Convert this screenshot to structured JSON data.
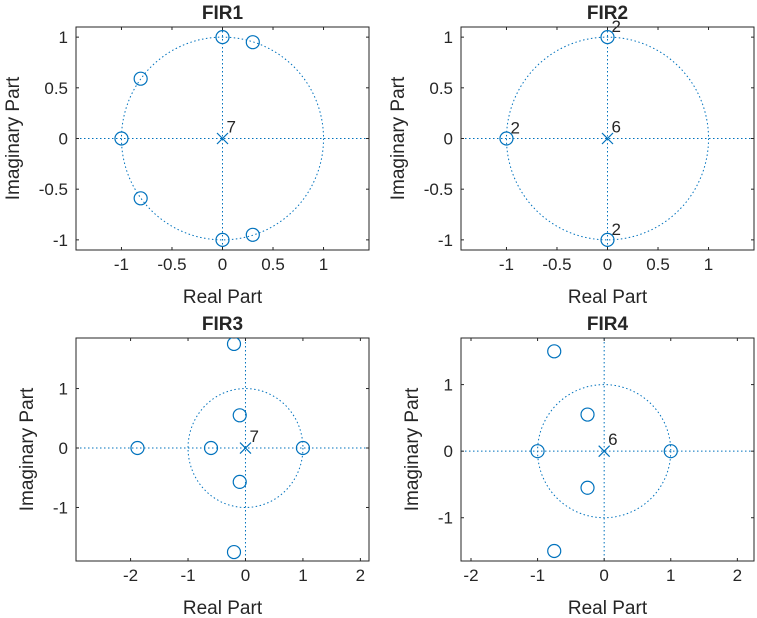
{
  "colors": {
    "marker": "#0072BD",
    "axes": "#262626",
    "background": "#ffffff"
  },
  "chart_data": [
    {
      "type": "scatter",
      "title": "FIR1",
      "xlabel": "Real Part",
      "ylabel": "Imaginary Part",
      "xlim": [
        -1.45,
        1.45
      ],
      "ylim": [
        -1.1,
        1.1
      ],
      "xticks": [
        -1,
        -0.5,
        0,
        0.5,
        1
      ],
      "xtick_labels": [
        "-1",
        "-0.5",
        "0",
        "0.5",
        "1"
      ],
      "yticks": [
        -1,
        -0.5,
        0,
        0.5,
        1
      ],
      "ytick_labels": [
        "-1",
        "-0.5",
        "0",
        "0.5",
        "1"
      ],
      "unit_circle": true,
      "zeros": [
        [
          0,
          1
        ],
        [
          0.3,
          0.95
        ],
        [
          -0.81,
          0.59
        ],
        [
          -1,
          0
        ],
        [
          -0.81,
          -0.59
        ],
        [
          0,
          -1
        ],
        [
          0.3,
          -0.95
        ]
      ],
      "zero_multiplicity_labels": [],
      "poles": [
        [
          0,
          0
        ]
      ],
      "pole_multiplicity_label": "7"
    },
    {
      "type": "scatter",
      "title": "FIR2",
      "xlabel": "Real Part",
      "ylabel": "Imaginary Part",
      "xlim": [
        -1.45,
        1.45
      ],
      "ylim": [
        -1.1,
        1.1
      ],
      "xticks": [
        -1,
        -0.5,
        0,
        0.5,
        1
      ],
      "xtick_labels": [
        "-1",
        "-0.5",
        "0",
        "0.5",
        "1"
      ],
      "yticks": [
        -1,
        -0.5,
        0,
        0.5,
        1
      ],
      "ytick_labels": [
        "-1",
        "-0.5",
        "0",
        "0.5",
        "1"
      ],
      "unit_circle": true,
      "zeros": [
        [
          0,
          1
        ],
        [
          -1,
          0
        ],
        [
          0,
          -1
        ]
      ],
      "zero_multiplicity_labels": [
        "2",
        "2",
        "2"
      ],
      "poles": [
        [
          0,
          0
        ]
      ],
      "pole_multiplicity_label": "6"
    },
    {
      "type": "scatter",
      "title": "FIR3",
      "xlabel": "Real Part",
      "ylabel": "Imaginary Part",
      "xlim": [
        -2.95,
        2.15
      ],
      "ylim": [
        -1.9,
        1.85
      ],
      "xticks": [
        -2,
        -1,
        0,
        1,
        2
      ],
      "xtick_labels": [
        "-2",
        "-1",
        "0",
        "1",
        "2"
      ],
      "yticks": [
        -1,
        0,
        1
      ],
      "ytick_labels": [
        "-1",
        "0",
        "1"
      ],
      "unit_circle": true,
      "zeros": [
        [
          -0.2,
          1.75
        ],
        [
          -0.1,
          0.55
        ],
        [
          -1.88,
          0
        ],
        [
          -0.6,
          0
        ],
        [
          1.0,
          0
        ],
        [
          -0.1,
          -0.57
        ],
        [
          -0.2,
          -1.75
        ]
      ],
      "zero_multiplicity_labels": [],
      "poles": [
        [
          0,
          0
        ]
      ],
      "pole_multiplicity_label": "7"
    },
    {
      "type": "scatter",
      "title": "FIR4",
      "xlabel": "Real Part",
      "ylabel": "Imaginary Part",
      "xlim": [
        -2.15,
        2.25
      ],
      "ylim": [
        -1.65,
        1.7
      ],
      "xticks": [
        -2,
        -1,
        0,
        1,
        2
      ],
      "xtick_labels": [
        "-2",
        "-1",
        "0",
        "1",
        "2"
      ],
      "yticks": [
        -1,
        0,
        1
      ],
      "ytick_labels": [
        "-1",
        "0",
        "1"
      ],
      "unit_circle": true,
      "zeros": [
        [
          -0.75,
          1.5
        ],
        [
          -0.25,
          0.55
        ],
        [
          -1.0,
          0
        ],
        [
          1.0,
          0
        ],
        [
          -0.25,
          -0.55
        ],
        [
          -0.75,
          -1.5
        ]
      ],
      "zero_multiplicity_labels": [],
      "poles": [
        [
          0,
          0
        ]
      ],
      "pole_multiplicity_label": "6"
    }
  ]
}
